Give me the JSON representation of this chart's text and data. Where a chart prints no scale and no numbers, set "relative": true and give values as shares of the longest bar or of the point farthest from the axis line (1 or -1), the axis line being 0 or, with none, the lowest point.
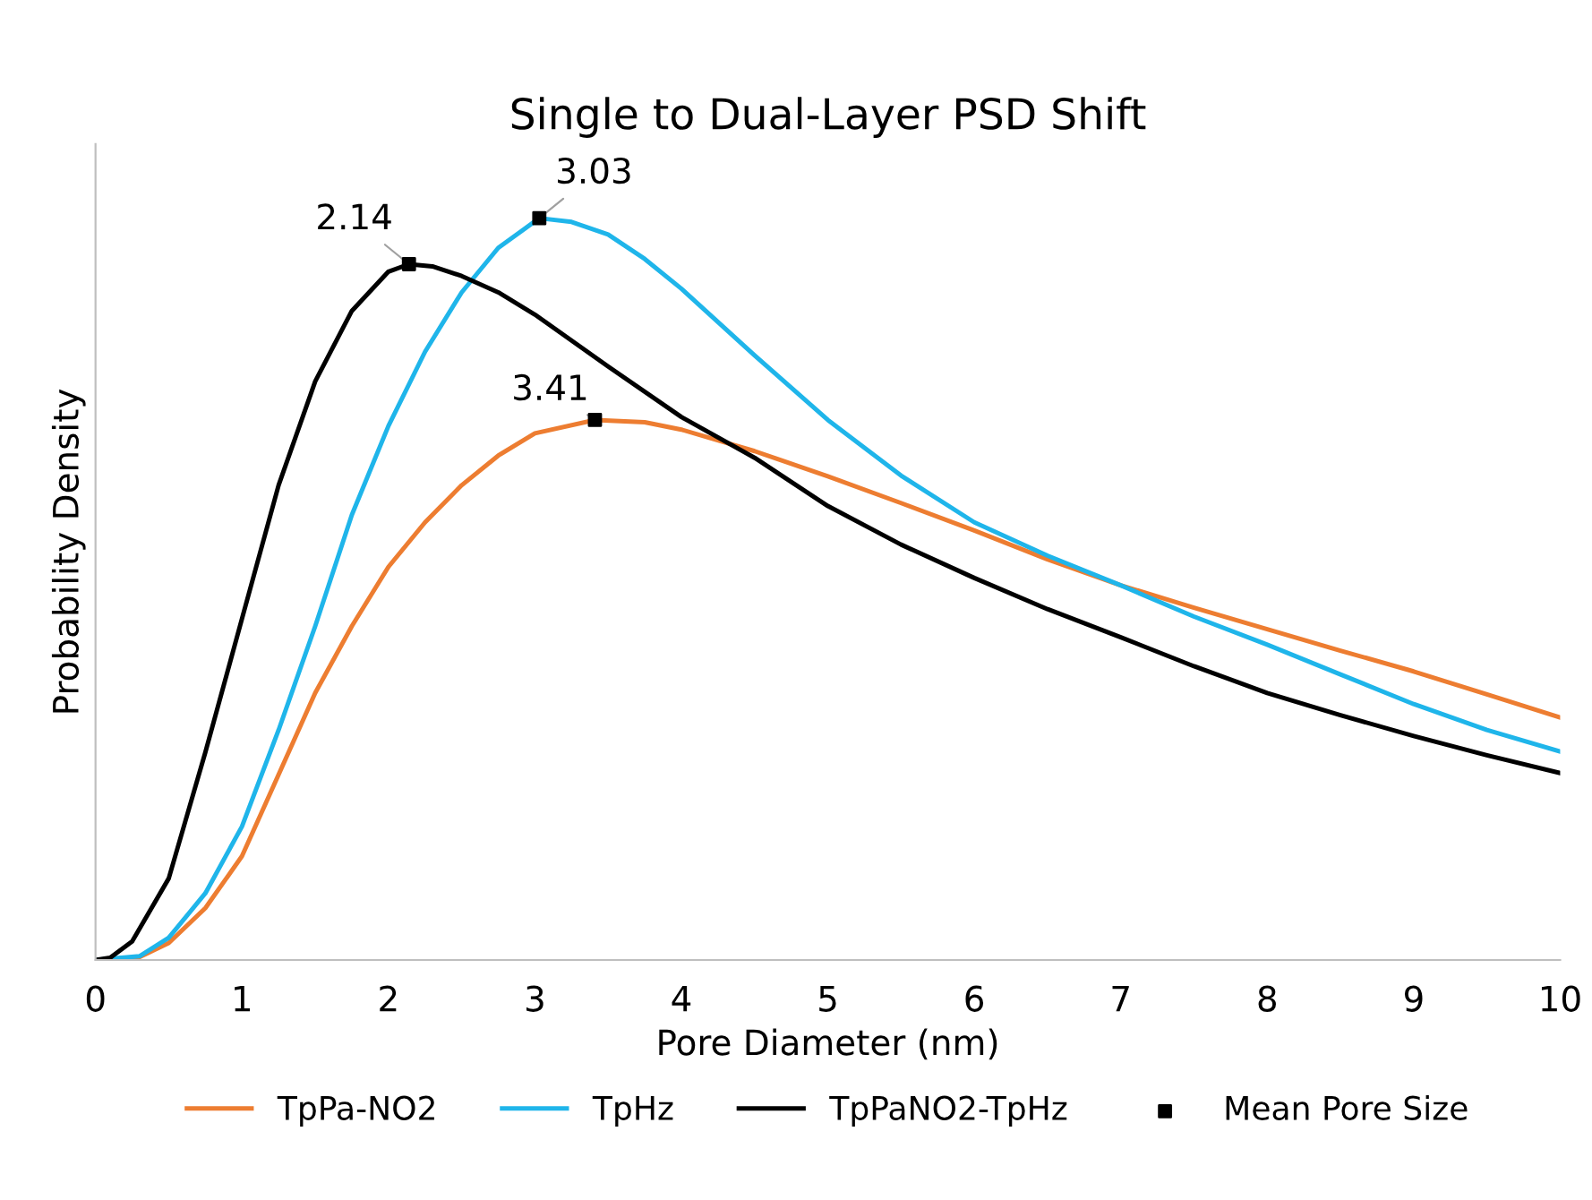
{
  "chart_data": {
    "type": "line",
    "title": "Single to Dual-Layer PSD Shift",
    "xlabel": "Pore Diameter (nm)",
    "ylabel": "Probability Density",
    "relative": true,
    "xlim": [
      0,
      10
    ],
    "xticks": [
      0,
      1,
      2,
      3,
      4,
      5,
      6,
      7,
      8,
      9,
      10
    ],
    "grid": false,
    "legend": "bottom",
    "marker": "none",
    "line_style": "solid",
    "series": [
      {
        "name": "TpPa-NO2",
        "color": "#ed7d31",
        "x": [
          0,
          0.3,
          0.5,
          0.75,
          1,
          1.25,
          1.5,
          1.75,
          2,
          2.25,
          2.5,
          2.75,
          3,
          3.41,
          3.75,
          4,
          4.5,
          5,
          5.5,
          6,
          6.5,
          7,
          7.5,
          8,
          8.5,
          9,
          9.5,
          10
        ],
        "values": [
          0,
          0.004,
          0.023,
          0.07,
          0.14,
          0.25,
          0.36,
          0.45,
          0.53,
          0.59,
          0.64,
          0.68,
          0.71,
          0.728,
          0.725,
          0.715,
          0.686,
          0.652,
          0.616,
          0.579,
          0.54,
          0.505,
          0.475,
          0.446,
          0.417,
          0.389,
          0.358,
          0.327
        ]
      },
      {
        "name": "TpHz",
        "color": "#1fb5ea",
        "x": [
          0,
          0.3,
          0.5,
          0.75,
          1,
          1.25,
          1.5,
          1.75,
          2,
          2.25,
          2.5,
          2.75,
          3.03,
          3.25,
          3.5,
          3.75,
          4,
          4.5,
          5,
          5.5,
          6,
          6.5,
          7,
          7.5,
          8,
          8.5,
          9,
          9.5,
          10
        ],
        "values": [
          0,
          0.005,
          0.03,
          0.09,
          0.18,
          0.31,
          0.45,
          0.6,
          0.72,
          0.82,
          0.9,
          0.96,
          1,
          0.995,
          0.978,
          0.945,
          0.905,
          0.815,
          0.728,
          0.653,
          0.59,
          0.545,
          0.505,
          0.463,
          0.425,
          0.385,
          0.345,
          0.31,
          0.281
        ]
      },
      {
        "name": "TpPaNO2-TpHz",
        "color": "#000000",
        "x": [
          0,
          0.1,
          0.25,
          0.5,
          0.75,
          1,
          1.25,
          1.5,
          1.75,
          2,
          2.14,
          2.3,
          2.5,
          2.75,
          3,
          3.5,
          4,
          4.5,
          5,
          5.5,
          6,
          6.5,
          7,
          7.5,
          8,
          8.5,
          9,
          9.5,
          10
        ],
        "values": [
          0,
          0.003,
          0.025,
          0.11,
          0.28,
          0.46,
          0.64,
          0.78,
          0.875,
          0.928,
          0.938,
          0.935,
          0.922,
          0.9,
          0.87,
          0.8,
          0.732,
          0.677,
          0.612,
          0.56,
          0.515,
          0.473,
          0.435,
          0.396,
          0.36,
          0.33,
          0.302,
          0.276,
          0.252
        ]
      },
      {
        "name": "Mean Pore Size",
        "type": "scatter",
        "marker": "square",
        "color": "#000000",
        "x": [
          2.14,
          3.03,
          3.41
        ],
        "values": [
          0.938,
          1,
          0.728
        ]
      }
    ],
    "annotations": [
      {
        "text": "2.14",
        "x": 2.14,
        "y": 0.938
      },
      {
        "text": "3.03",
        "x": 3.03,
        "y": 1
      },
      {
        "text": "3.41",
        "x": 3.41,
        "y": 0.728
      }
    ]
  }
}
